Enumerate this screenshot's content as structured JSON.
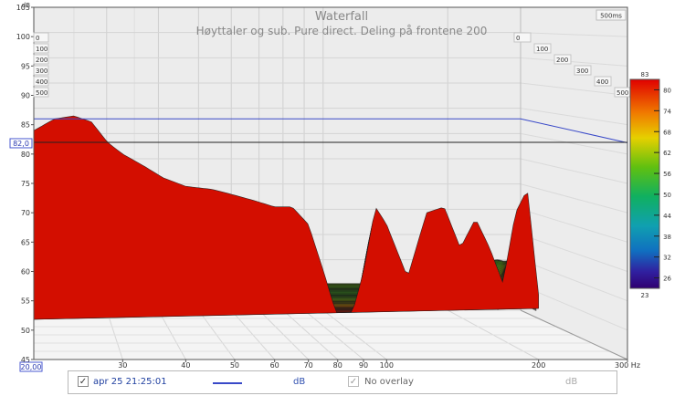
{
  "chart_data": {
    "type": "waterfall",
    "title": "Waterfall",
    "subtitle": "Høyttaler og sub. Pure direct. Deling på frontene 200",
    "time_label": "500ms",
    "ylabel": "dB",
    "y_axis": {
      "min": 45,
      "max": 105,
      "ticks": [
        45,
        50,
        55,
        60,
        65,
        70,
        75,
        80,
        85,
        90,
        95,
        100,
        105
      ]
    },
    "x_axis": {
      "unit": "Hz",
      "min": 20,
      "max": 300,
      "scale": "log",
      "ticks": [
        30,
        40,
        50,
        60,
        70,
        80,
        90,
        100,
        200,
        300
      ]
    },
    "x_start_readout": "20,00",
    "cursor_readout": "82,0",
    "cursor_level_db": 82.0,
    "time_ticks_left": [
      "0",
      "100",
      "200",
      "300",
      "400",
      "500"
    ],
    "time_ticks_right": [
      "0",
      "100",
      "200",
      "300",
      "400",
      "500"
    ],
    "colorbar": {
      "max_label": "83",
      "min_label": "23",
      "ticks": [
        80,
        74,
        68,
        62,
        56,
        50,
        44,
        38,
        32,
        26
      ]
    },
    "overlay_level_db": 86.0,
    "front_slice": {
      "freq_hz": [
        20,
        22,
        24,
        26,
        28,
        30,
        33,
        36,
        40,
        45,
        50,
        55,
        60,
        65,
        70,
        75,
        80,
        85,
        90,
        95,
        100,
        110,
        120,
        130,
        140,
        150,
        160,
        170,
        180,
        190,
        200
      ],
      "db": [
        84,
        86,
        86.5,
        85.5,
        82,
        80,
        78,
        76,
        74.5,
        74,
        73,
        72,
        71,
        71,
        68,
        60,
        52,
        52,
        60,
        71,
        68,
        59,
        70,
        71,
        64,
        69,
        64,
        58,
        70,
        74,
        56
      ]
    }
  },
  "legend": {
    "entry1_checked": "✓",
    "entry1_label": "apr 25 21:25:01",
    "entry1_unit": "dB",
    "entry2_checked": "✓",
    "entry2_label": "No overlay",
    "entry2_unit": "dB",
    "line_color": "#3949c8"
  }
}
